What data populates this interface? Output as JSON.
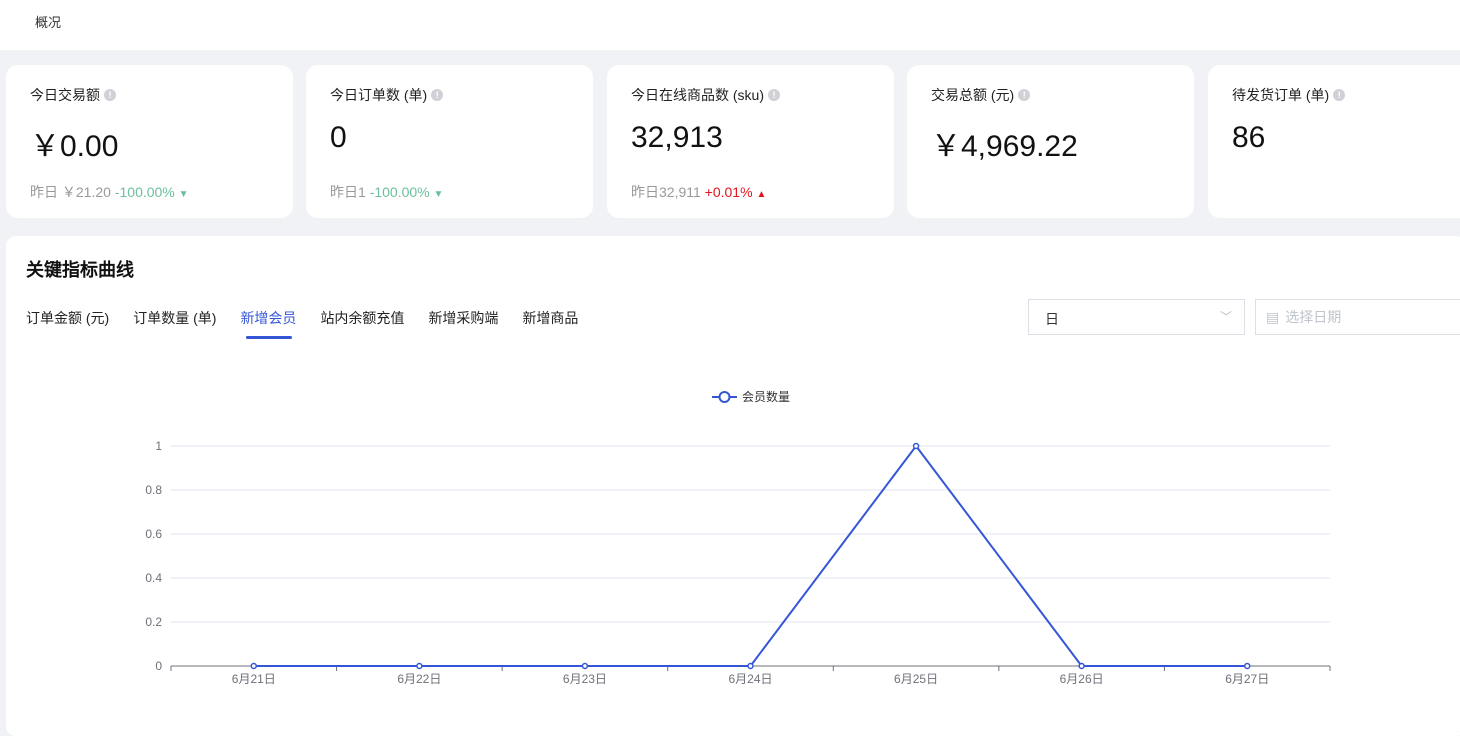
{
  "header": {
    "breadcrumb": "概况"
  },
  "cards": [
    {
      "title": "今日交易额",
      "value": "￥0.00",
      "yesterday": "昨日 ￥21.20",
      "change": "-100.00%",
      "trend": "down"
    },
    {
      "title": "今日订单数 (单)",
      "value": "0",
      "yesterday": "昨日1",
      "change": "-100.00%",
      "trend": "down"
    },
    {
      "title": "今日在线商品数 (sku)",
      "value": "32,913",
      "yesterday": "昨日32,911",
      "change": "+0.01%",
      "trend": "up"
    },
    {
      "title": "交易总额 (元)",
      "value": "￥4,969.22"
    },
    {
      "title": "待发货订单 (单)",
      "value": "86"
    }
  ],
  "panel": {
    "title": "关键指标曲线",
    "tabs": [
      "订单金额 (元)",
      "订单数量 (单)",
      "新增会员",
      "站内余额充值",
      "新增采购端",
      "新增商品"
    ],
    "active_tab": 2,
    "period_select": "日",
    "date_placeholder": "选择日期"
  },
  "colors": {
    "accent": "#3456d6",
    "down": "#6cbf9c",
    "up": "#e4151f"
  },
  "chart_data": {
    "type": "line",
    "categories": [
      "6月21日",
      "6月22日",
      "6月23日",
      "6月24日",
      "6月25日",
      "6月26日",
      "6月27日"
    ],
    "series": [
      {
        "name": "会员数量",
        "values": [
          0,
          0,
          0,
          0,
          1,
          0,
          0
        ]
      }
    ],
    "yticks": [
      "0",
      "0.2",
      "0.4",
      "0.6",
      "0.8",
      "1"
    ],
    "ylim": [
      0,
      1
    ],
    "grid": true,
    "legend": "top-center"
  }
}
